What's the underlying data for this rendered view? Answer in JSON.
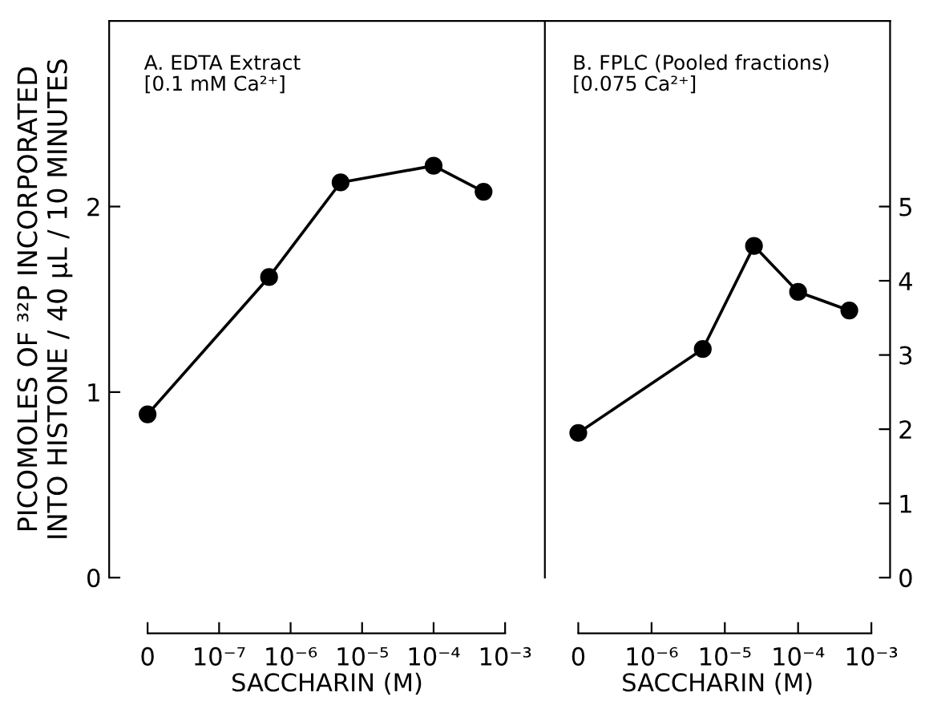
{
  "chart_data": [
    {
      "type": "line",
      "title": "A. EDTA Extract\n[0.1 mM Ca²⁺]",
      "xlabel": "SACCHARIN (M)",
      "ylabel": "PICOMOLES OF ³²P INCORPORATED\nINTO HISTONE / 40 µL / 10 MINUTES",
      "log": "x",
      "marker": "circle",
      "line_style": "solid",
      "grid": false,
      "legend": false,
      "xlim": [
        2.9e-09,
        0.0036
      ],
      "xticks": [
        {
          "value": 1e-08,
          "label": "0"
        },
        {
          "value": 1e-07,
          "label": "10⁻⁷"
        },
        {
          "value": 1e-06,
          "label": "10⁻⁶"
        },
        {
          "value": 1e-05,
          "label": "10⁻⁵"
        },
        {
          "value": 0.0001,
          "label": "10⁻⁴"
        },
        {
          "value": 0.001,
          "label": "10⁻³"
        }
      ],
      "ylim": [
        0,
        3
      ],
      "yticks": [
        0,
        1,
        2
      ],
      "series": [
        {
          "color": "#000000",
          "x": [
            1e-08,
            5e-07,
            5e-06,
            0.0001,
            0.0005
          ],
          "values": [
            0.88,
            1.62,
            2.13,
            2.22,
            2.08
          ]
        }
      ]
    },
    {
      "type": "line",
      "title": "B. FPLC (Pooled fractions)\n[0.075 Ca²⁺]",
      "xlabel": "SACCHARIN (M)",
      "log": "x",
      "marker": "circle",
      "line_style": "solid",
      "grid": false,
      "legend": false,
      "xlim": [
        3.5e-08,
        0.0018
      ],
      "xticks": [
        {
          "value": 1e-07,
          "label": "0"
        },
        {
          "value": 1e-06,
          "label": "10⁻⁶"
        },
        {
          "value": 1e-05,
          "label": "10⁻⁵"
        },
        {
          "value": 0.0001,
          "label": "10⁻⁴"
        },
        {
          "value": 0.001,
          "label": "10⁻³"
        }
      ],
      "y2lim": [
        0,
        7.5
      ],
      "y2ticks": [
        0,
        1,
        2,
        3,
        4,
        5
      ],
      "series": [
        {
          "color": "#000000",
          "axis": "y2",
          "x": [
            1e-07,
            5e-06,
            2.5e-05,
            0.0001,
            0.0005
          ],
          "values": [
            1.95,
            3.08,
            4.47,
            3.85,
            3.6
          ]
        }
      ]
    }
  ]
}
